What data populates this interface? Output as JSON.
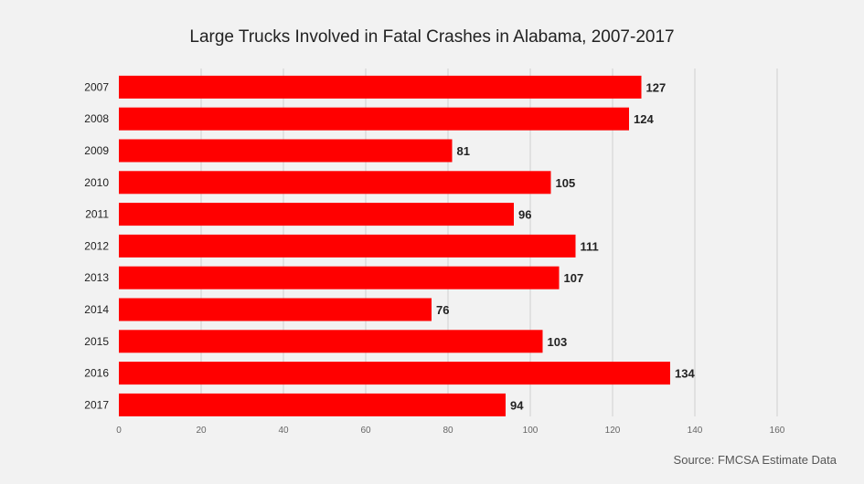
{
  "title": "Large Trucks Involved in Fatal Crashes in Alabama, 2007-2017",
  "source": "Source: FMCSA Estimate Data",
  "colors": {
    "bar": "#ff0000",
    "grid": "#d0d0d0",
    "background": "#f2f2f2"
  },
  "chart_data": {
    "type": "bar",
    "orientation": "horizontal",
    "title": "Large Trucks Involved in Fatal Crashes in Alabama, 2007-2017",
    "categories": [
      "2007",
      "2008",
      "2009",
      "2010",
      "2011",
      "2012",
      "2013",
      "2014",
      "2015",
      "2016",
      "2017"
    ],
    "values": [
      127,
      124,
      81,
      105,
      96,
      111,
      107,
      76,
      103,
      134,
      94
    ],
    "xlim": [
      0,
      160
    ],
    "xticks": [
      0,
      20,
      40,
      60,
      80,
      100,
      120,
      140,
      160
    ],
    "grid": true,
    "legend": "none"
  }
}
